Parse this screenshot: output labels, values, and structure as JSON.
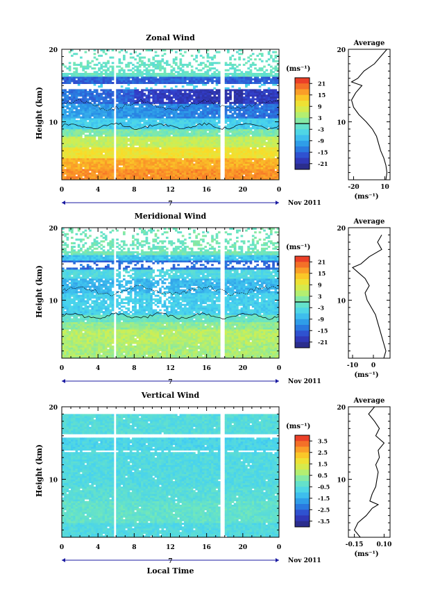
{
  "figure": {
    "date_label": "Nov 2011",
    "day_label": "7",
    "local_time_label": "Local Time",
    "average_title": "Average",
    "unit_label": "(ms⁻¹)",
    "height_label": "Height (km)"
  },
  "chart_data": [
    {
      "type": "heatmap",
      "title": "Zonal Wind",
      "ylabel": "Height (km)",
      "xlabel": "",
      "x_ticks": [
        "0",
        "4",
        "8",
        "12",
        "16",
        "20",
        "0"
      ],
      "x_range": [
        0,
        24
      ],
      "y_ticks": [
        "20",
        "10"
      ],
      "y_range": [
        2,
        20
      ],
      "colorbar": {
        "unit": "(ms⁻¹)",
        "ticks": [
          "21",
          "15",
          "9",
          "3",
          "-3",
          "-9",
          "-15",
          "-21"
        ],
        "range": [
          -24,
          24
        ],
        "zero_line": true
      },
      "profile_series": [
        {
          "height": 20,
          "value": 12
        },
        {
          "height": 19,
          "value": 6
        },
        {
          "height": 18,
          "value": 0
        },
        {
          "height": 17,
          "value": -10
        },
        {
          "height": 16,
          "value": -16
        },
        {
          "height": 15.5,
          "value": -22
        },
        {
          "height": 15,
          "value": -12
        },
        {
          "height": 14,
          "value": -18
        },
        {
          "height": 13,
          "value": -22
        },
        {
          "height": 12,
          "value": -20
        },
        {
          "height": 11,
          "value": -15
        },
        {
          "height": 10,
          "value": -8
        },
        {
          "height": 9,
          "value": -2
        },
        {
          "height": 8,
          "value": 2
        },
        {
          "height": 7,
          "value": 4
        },
        {
          "height": 6,
          "value": 6
        },
        {
          "height": 5,
          "value": 9
        },
        {
          "height": 4,
          "value": 11
        },
        {
          "height": 3,
          "value": 12
        },
        {
          "height": 2,
          "value": 11
        }
      ],
      "profile": {
        "title": "Average",
        "x_ticks": [
          "-20",
          "10"
        ],
        "x_range": [
          -25,
          15
        ],
        "y_ticks": [
          "20",
          "10"
        ],
        "xlabel": "(ms⁻¹)"
      }
    },
    {
      "type": "heatmap",
      "title": "Meridional Wind",
      "ylabel": "Height (km)",
      "xlabel": "",
      "x_ticks": [
        "0",
        "4",
        "8",
        "12",
        "16",
        "20",
        "0"
      ],
      "x_range": [
        0,
        24
      ],
      "y_ticks": [
        "20",
        "10"
      ],
      "y_range": [
        2,
        20
      ],
      "colorbar": {
        "unit": "(ms⁻¹)",
        "ticks": [
          "21",
          "15",
          "9",
          "3",
          "-3",
          "-9",
          "-15",
          "-21"
        ],
        "range": [
          -24,
          24
        ],
        "zero_line": true
      },
      "profile_series": [
        {
          "height": 19,
          "value": 4
        },
        {
          "height": 18,
          "value": 2
        },
        {
          "height": 17,
          "value": 4
        },
        {
          "height": 16,
          "value": -2
        },
        {
          "height": 15,
          "value": -6
        },
        {
          "height": 14.5,
          "value": -10
        },
        {
          "height": 14,
          "value": -8
        },
        {
          "height": 13,
          "value": -4
        },
        {
          "height": 12,
          "value": -2
        },
        {
          "height": 11,
          "value": -4
        },
        {
          "height": 10,
          "value": -3
        },
        {
          "height": 9,
          "value": -1
        },
        {
          "height": 8,
          "value": 1
        },
        {
          "height": 7,
          "value": 2
        },
        {
          "height": 6,
          "value": 3
        },
        {
          "height": 5,
          "value": 4
        },
        {
          "height": 4,
          "value": 5
        },
        {
          "height": 3,
          "value": 6
        },
        {
          "height": 2,
          "value": 5
        }
      ],
      "profile": {
        "title": "Average",
        "x_ticks": [
          "-10",
          "0"
        ],
        "x_range": [
          -12,
          8
        ],
        "y_ticks": [
          "20",
          "10"
        ],
        "xlabel": "(ms⁻¹)"
      }
    },
    {
      "type": "heatmap",
      "title": "Vertical Wind",
      "ylabel": "Height (km)",
      "xlabel": "Local Time",
      "x_ticks": [
        "0",
        "4",
        "8",
        "12",
        "16",
        "20",
        "0"
      ],
      "x_range": [
        0,
        24
      ],
      "y_ticks": [
        "20",
        "10"
      ],
      "y_range": [
        2,
        20
      ],
      "colorbar": {
        "unit": "(ms⁻¹)",
        "ticks": [
          "3.5",
          "2.5",
          "1.5",
          "0.5",
          "-0.5",
          "-1.5",
          "-2.5",
          "-3.5"
        ],
        "range": [
          -4,
          4
        ],
        "zero_line": false
      },
      "profile_series": [
        {
          "height": 20,
          "value": 0.02
        },
        {
          "height": 19,
          "value": -0.03
        },
        {
          "height": 18,
          "value": 0.02
        },
        {
          "height": 17,
          "value": 0.06
        },
        {
          "height": 16,
          "value": 0.03
        },
        {
          "height": 15,
          "value": 0.1
        },
        {
          "height": 14,
          "value": 0.05
        },
        {
          "height": 13,
          "value": 0.06
        },
        {
          "height": 12,
          "value": 0.03
        },
        {
          "height": 11,
          "value": 0.05
        },
        {
          "height": 10,
          "value": 0.04
        },
        {
          "height": 9,
          "value": 0.03
        },
        {
          "height": 8,
          "value": 0.0
        },
        {
          "height": 7,
          "value": -0.02
        },
        {
          "height": 6.5,
          "value": 0.05
        },
        {
          "height": 6,
          "value": 0.0
        },
        {
          "height": 5,
          "value": -0.05
        },
        {
          "height": 4,
          "value": -0.12
        },
        {
          "height": 3,
          "value": -0.15
        },
        {
          "height": 2,
          "value": -0.1
        }
      ],
      "profile": {
        "title": "Average",
        "x_ticks": [
          "-0.15",
          "0.10"
        ],
        "x_range": [
          -0.2,
          0.15
        ],
        "y_ticks": [
          "20",
          "10"
        ],
        "xlabel": "(ms⁻¹)"
      }
    }
  ]
}
